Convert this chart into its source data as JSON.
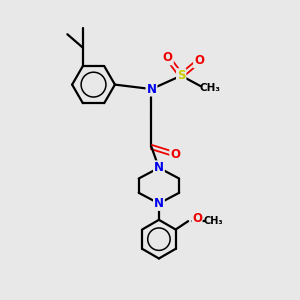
{
  "bg_color": "#e8e8e8",
  "atom_colors": {
    "C": "#000000",
    "N": "#0000ee",
    "O": "#ee0000",
    "S": "#cccc00",
    "H": "#000000"
  },
  "bond_color": "#000000",
  "bond_width": 1.6,
  "figsize": [
    3.0,
    3.0
  ],
  "dpi": 100
}
